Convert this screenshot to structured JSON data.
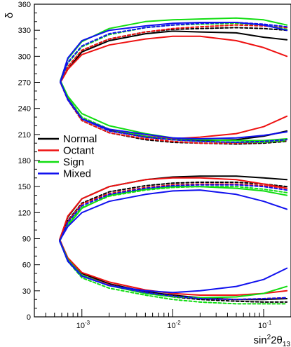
{
  "chart_data": {
    "type": "line",
    "xlabel": {
      "main": "sin",
      "sup": "2",
      "tail": "2θ",
      "sub": "13"
    },
    "ylabel": "δ",
    "xscale": "log",
    "xlim": [
      0.0003,
      0.2
    ],
    "ylim": [
      0,
      360
    ],
    "x_tick_labels": [
      {
        "value": 0.001,
        "base": "10",
        "exp": "-3"
      },
      {
        "value": 0.01,
        "base": "10",
        "exp": "-2"
      },
      {
        "value": 0.1,
        "base": "10",
        "exp": "-1"
      }
    ],
    "y_ticks": [
      0,
      30,
      60,
      90,
      120,
      150,
      180,
      210,
      240,
      270,
      300,
      330,
      360
    ],
    "legend_position": "center-left",
    "colors": {
      "Normal": "#000000",
      "Octant": "#ee1111",
      "Sign": "#11dd11",
      "Mixed": "#1111ee"
    },
    "series": [
      {
        "name": "Normal",
        "color": "#000000",
        "dash": "solid",
        "x": [
          0.18,
          0.1,
          0.05,
          0.02,
          0.01,
          0.005,
          0.002,
          0.001,
          0.0007,
          0.00058,
          0.0007,
          0.001,
          0.002,
          0.005,
          0.01,
          0.02,
          0.05,
          0.1,
          0.18
        ],
        "y": [
          319,
          322,
          327,
          328,
          329,
          326,
          318,
          305,
          285,
          270,
          252,
          228,
          215,
          207,
          204,
          203,
          204,
          208,
          214
        ]
      },
      {
        "name": "Normal",
        "color": "#000000",
        "dash": "dashed",
        "x": [
          0.18,
          0.1,
          0.05,
          0.02,
          0.01,
          0.005,
          0.002,
          0.001,
          0.0007,
          0.00058,
          0.0007,
          0.001,
          0.002,
          0.005,
          0.01,
          0.02,
          0.05,
          0.1,
          0.18
        ],
        "y": [
          330,
          332,
          333,
          332,
          331,
          328,
          320,
          307,
          288,
          270,
          250,
          226,
          212,
          204,
          201,
          200,
          199,
          200,
          202
        ]
      },
      {
        "name": "Octant",
        "color": "#ee1111",
        "dash": "solid",
        "x": [
          0.18,
          0.1,
          0.05,
          0.02,
          0.01,
          0.005,
          0.002,
          0.001,
          0.0007,
          0.00058,
          0.0007,
          0.001,
          0.002,
          0.005,
          0.01,
          0.02,
          0.05,
          0.1,
          0.18
        ],
        "y": [
          300,
          310,
          318,
          323,
          323,
          320,
          313,
          302,
          285,
          270,
          252,
          228,
          216,
          208,
          205,
          207,
          211,
          219,
          231
        ]
      },
      {
        "name": "Octant",
        "color": "#ee1111",
        "dash": "dashed",
        "x": [
          0.18,
          0.1,
          0.05,
          0.02,
          0.01,
          0.005,
          0.002,
          0.001,
          0.0007,
          0.00058,
          0.0007,
          0.001,
          0.002,
          0.005,
          0.01,
          0.02,
          0.05,
          0.1,
          0.18
        ],
        "y": [
          333,
          335,
          336,
          334,
          332,
          328,
          320,
          307,
          288,
          270,
          250,
          226,
          212,
          205,
          202,
          200,
          200,
          201,
          203
        ]
      },
      {
        "name": "Sign",
        "color": "#11dd11",
        "dash": "solid",
        "x": [
          0.18,
          0.1,
          0.05,
          0.02,
          0.01,
          0.005,
          0.002,
          0.001,
          0.0007,
          0.00058,
          0.0007,
          0.001,
          0.002,
          0.005,
          0.01,
          0.02,
          0.05,
          0.1,
          0.18
        ],
        "y": [
          336,
          342,
          344,
          343,
          342,
          340,
          332,
          317,
          297,
          272,
          254,
          234,
          220,
          211,
          206,
          204,
          203,
          203,
          205
        ]
      },
      {
        "name": "Sign",
        "color": "#11dd11",
        "dash": "dashed",
        "x": [
          0.18,
          0.1,
          0.05,
          0.02,
          0.01,
          0.005,
          0.002,
          0.001,
          0.0007,
          0.00058,
          0.0007,
          0.001,
          0.002,
          0.005,
          0.01,
          0.02,
          0.05,
          0.1,
          0.18
        ],
        "y": [
          331,
          336,
          338,
          337,
          336,
          333,
          325,
          311,
          292,
          271,
          252,
          230,
          216,
          208,
          204,
          202,
          201,
          201,
          203
        ]
      },
      {
        "name": "Mixed",
        "color": "#1111ee",
        "dash": "solid",
        "x": [
          0.18,
          0.1,
          0.05,
          0.02,
          0.01,
          0.005,
          0.002,
          0.001,
          0.0007,
          0.00058,
          0.0007,
          0.001,
          0.002,
          0.005,
          0.01,
          0.02,
          0.05,
          0.1,
          0.18
        ],
        "y": [
          330,
          336,
          339,
          339,
          338,
          335,
          330,
          318,
          298,
          271,
          250,
          228,
          216,
          210,
          206,
          205,
          206,
          209,
          213
        ]
      },
      {
        "name": "Mixed",
        "color": "#1111ee",
        "dash": "dashed",
        "x": [
          0.18,
          0.1,
          0.05,
          0.02,
          0.01,
          0.005,
          0.002,
          0.001,
          0.0007,
          0.00058,
          0.0007,
          0.001,
          0.002,
          0.005,
          0.01,
          0.02,
          0.05,
          0.1,
          0.18
        ],
        "y": [
          334,
          337,
          339,
          338,
          336,
          333,
          326,
          312,
          293,
          270,
          251,
          228,
          214,
          207,
          204,
          202,
          201,
          202,
          204
        ]
      },
      {
        "name": "Normal",
        "color": "#000000",
        "dash": "solid",
        "x": [
          0.18,
          0.1,
          0.05,
          0.02,
          0.01,
          0.005,
          0.002,
          0.001,
          0.0007,
          0.00057,
          0.0007,
          0.001,
          0.002,
          0.005,
          0.01,
          0.02,
          0.05,
          0.1,
          0.18
        ],
        "y": [
          158,
          160,
          162,
          162,
          161,
          158,
          150,
          136,
          115,
          89,
          67,
          50,
          38,
          29,
          25,
          22,
          20,
          20,
          21
        ]
      },
      {
        "name": "Normal",
        "color": "#000000",
        "dash": "dashed",
        "x": [
          0.18,
          0.1,
          0.05,
          0.02,
          0.01,
          0.005,
          0.002,
          0.001,
          0.0007,
          0.00057,
          0.0007,
          0.001,
          0.002,
          0.005,
          0.01,
          0.02,
          0.05,
          0.1,
          0.18
        ],
        "y": [
          150,
          153,
          155,
          155,
          154,
          151,
          144,
          131,
          111,
          88,
          65,
          47,
          36,
          28,
          23,
          20,
          18,
          17,
          17
        ]
      },
      {
        "name": "Octant",
        "color": "#ee1111",
        "dash": "solid",
        "x": [
          0.18,
          0.1,
          0.05,
          0.02,
          0.01,
          0.005,
          0.002,
          0.001,
          0.0007,
          0.00057,
          0.0007,
          0.001,
          0.002,
          0.005,
          0.01,
          0.02,
          0.05,
          0.1,
          0.18
        ],
        "y": [
          148,
          153,
          158,
          160,
          160,
          158,
          150,
          136,
          116,
          89,
          68,
          51,
          40,
          31,
          27,
          25,
          25,
          27,
          30
        ]
      },
      {
        "name": "Octant",
        "color": "#ee1111",
        "dash": "dashed",
        "x": [
          0.18,
          0.1,
          0.05,
          0.02,
          0.01,
          0.005,
          0.002,
          0.001,
          0.0007,
          0.00057,
          0.0007,
          0.001,
          0.002,
          0.005,
          0.01,
          0.02,
          0.05,
          0.1,
          0.18
        ],
        "y": [
          148,
          151,
          153,
          153,
          152,
          149,
          142,
          130,
          110,
          88,
          66,
          48,
          37,
          28,
          24,
          21,
          20,
          21,
          22
        ]
      },
      {
        "name": "Sign",
        "color": "#11dd11",
        "dash": "solid",
        "x": [
          0.18,
          0.1,
          0.05,
          0.02,
          0.01,
          0.005,
          0.002,
          0.001,
          0.0007,
          0.00057,
          0.0007,
          0.001,
          0.002,
          0.005,
          0.01,
          0.02,
          0.05,
          0.1,
          0.18
        ],
        "y": [
          140,
          145,
          148,
          150,
          150,
          147,
          140,
          125,
          105,
          88,
          66,
          48,
          36,
          27,
          23,
          22,
          23,
          27,
          35
        ]
      },
      {
        "name": "Sign",
        "color": "#11dd11",
        "dash": "dashed",
        "x": [
          0.18,
          0.1,
          0.05,
          0.02,
          0.01,
          0.005,
          0.002,
          0.001,
          0.0007,
          0.00057,
          0.0007,
          0.001,
          0.002,
          0.005,
          0.01,
          0.02,
          0.05,
          0.1,
          0.18
        ],
        "y": [
          143,
          147,
          150,
          150,
          149,
          146,
          139,
          126,
          107,
          87,
          64,
          45,
          33,
          25,
          20,
          17,
          15,
          15,
          15
        ]
      },
      {
        "name": "Mixed",
        "color": "#1111ee",
        "dash": "solid",
        "x": [
          0.18,
          0.1,
          0.05,
          0.02,
          0.01,
          0.005,
          0.002,
          0.001,
          0.0007,
          0.00057,
          0.0007,
          0.001,
          0.002,
          0.005,
          0.01,
          0.02,
          0.05,
          0.1,
          0.18
        ],
        "y": [
          124,
          133,
          141,
          146,
          145,
          141,
          133,
          120,
          104,
          88,
          64,
          47,
          36,
          30,
          28,
          30,
          35,
          43,
          56
        ]
      },
      {
        "name": "Mixed",
        "color": "#1111ee",
        "dash": "dashed",
        "x": [
          0.18,
          0.1,
          0.05,
          0.02,
          0.01,
          0.005,
          0.002,
          0.001,
          0.0007,
          0.00057,
          0.0007,
          0.001,
          0.002,
          0.005,
          0.01,
          0.02,
          0.05,
          0.1,
          0.18
        ],
        "y": [
          146,
          150,
          152,
          152,
          151,
          148,
          141,
          128,
          109,
          87,
          65,
          47,
          36,
          28,
          24,
          21,
          20,
          21,
          22
        ]
      }
    ],
    "legend": [
      {
        "name": "Normal",
        "color": "#000000"
      },
      {
        "name": "Octant",
        "color": "#ee1111"
      },
      {
        "name": "Sign",
        "color": "#11dd11"
      },
      {
        "name": "Mixed",
        "color": "#1111ee"
      }
    ]
  }
}
